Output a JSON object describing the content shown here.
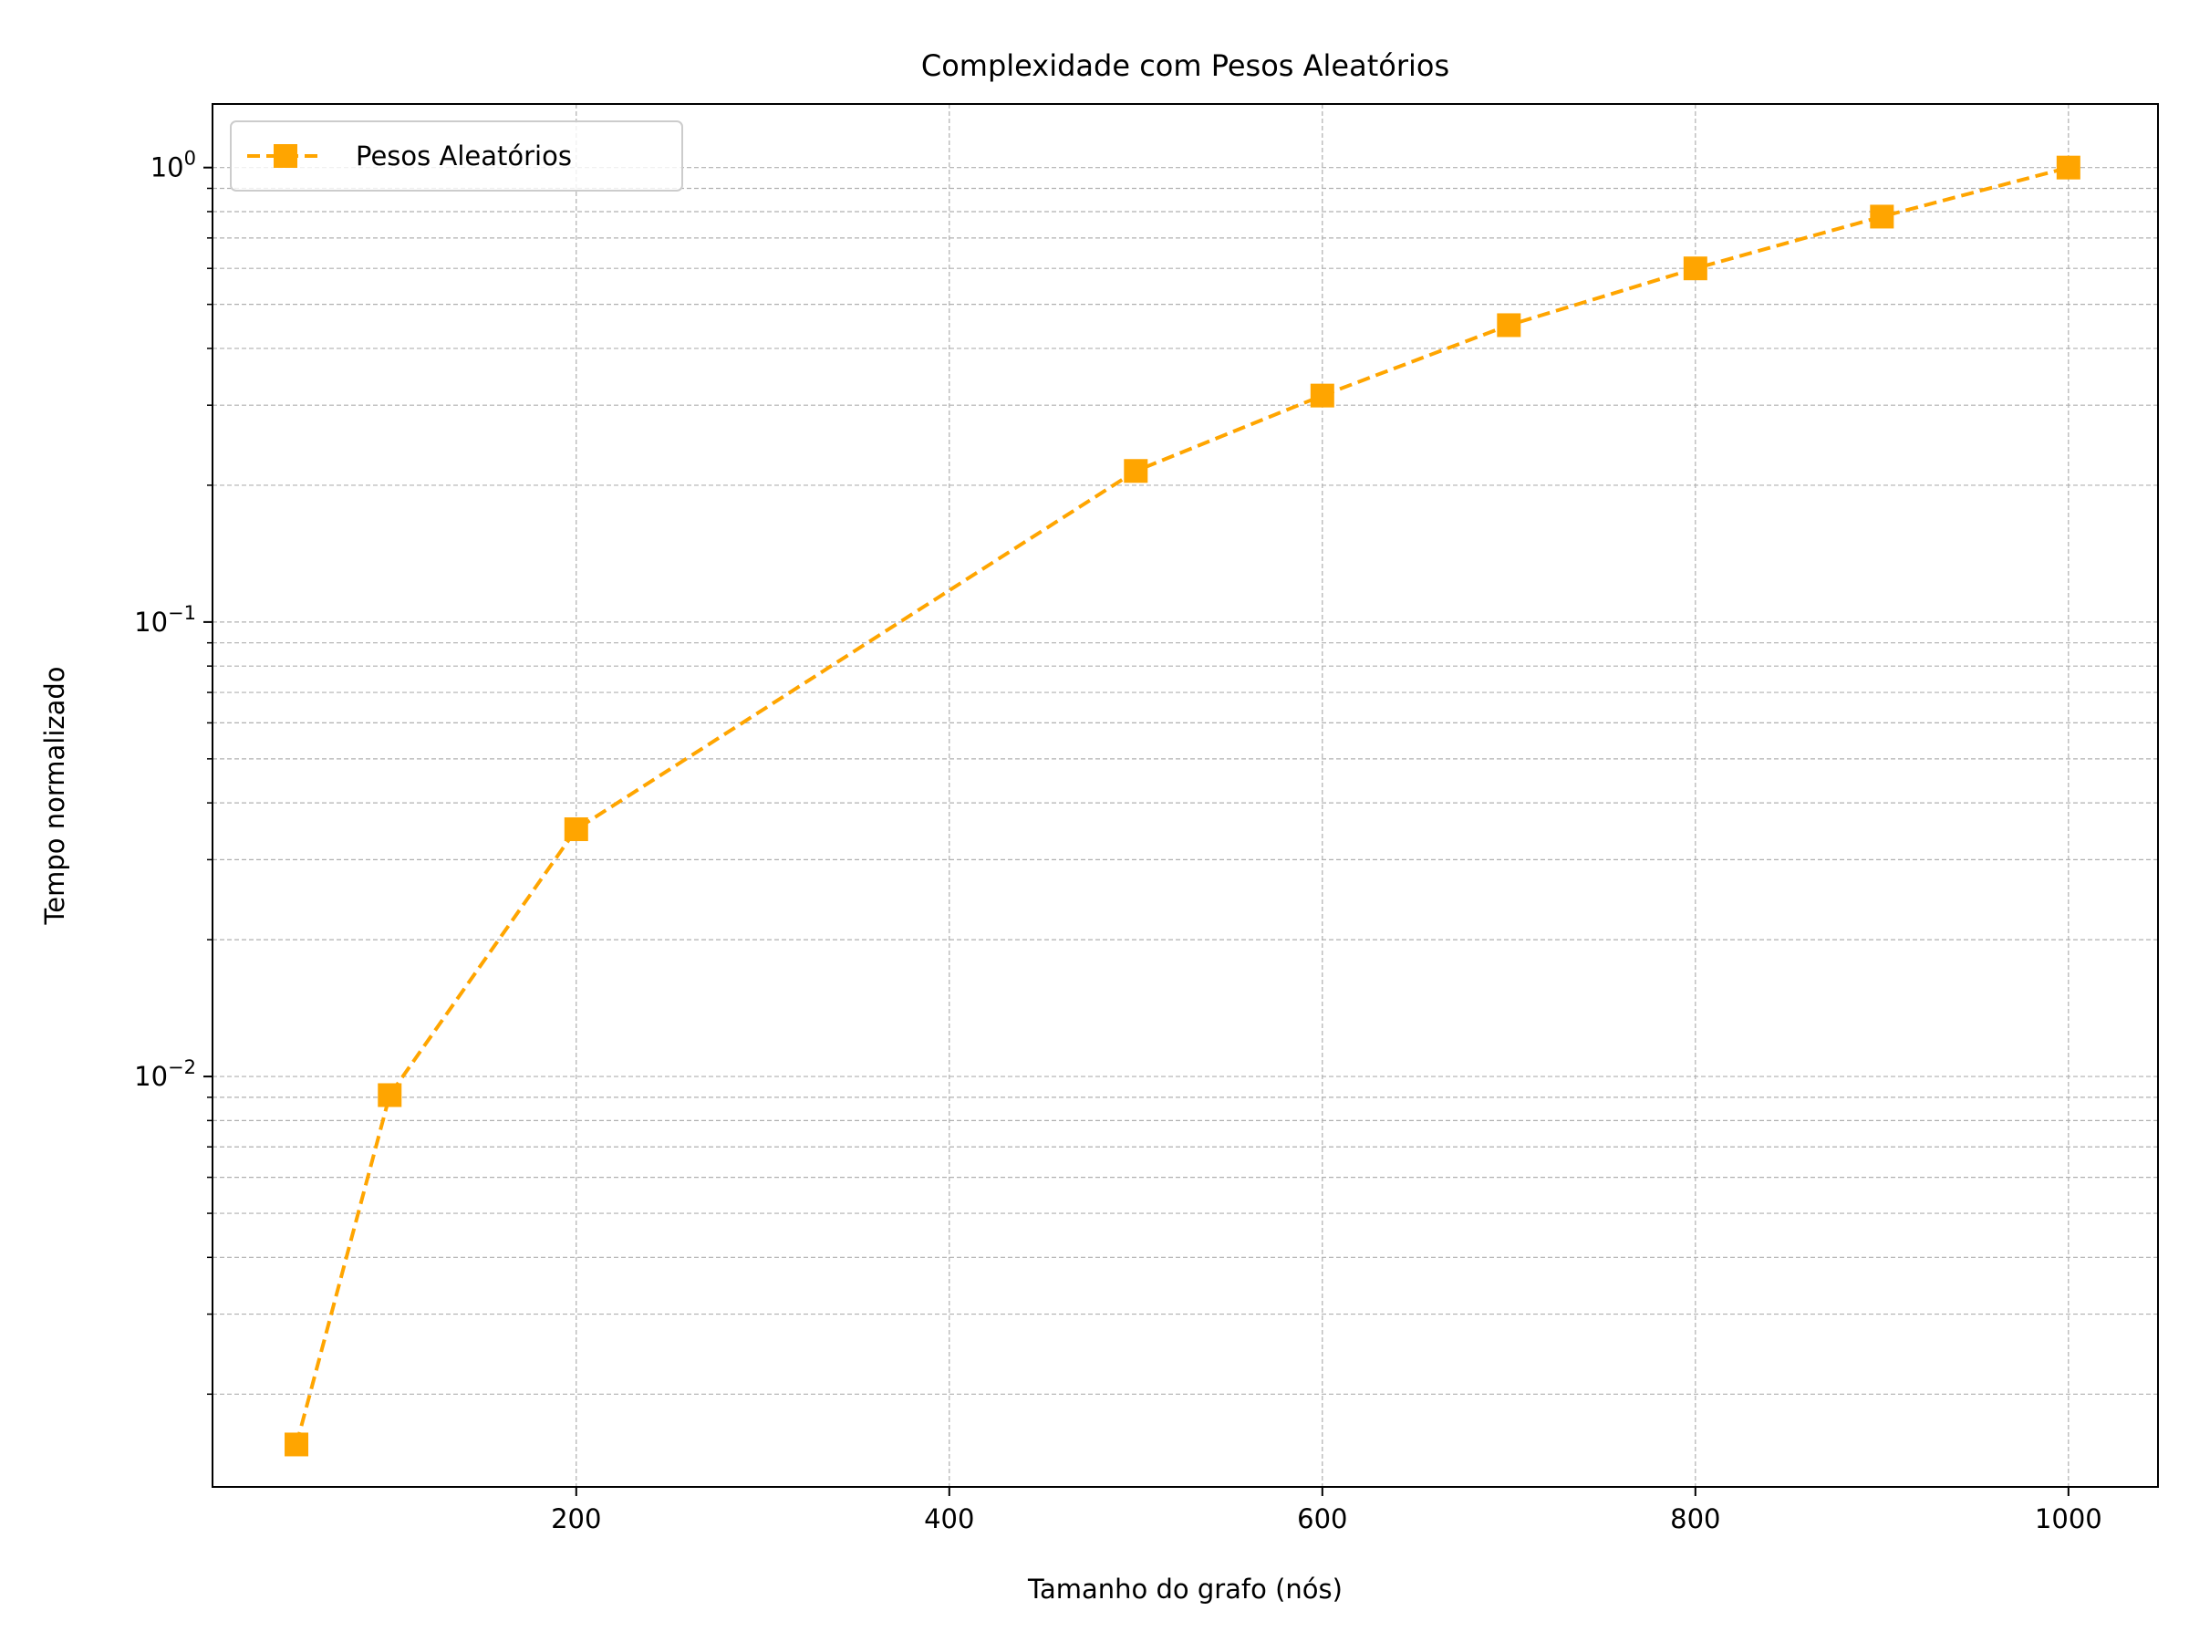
{
  "chart_data": {
    "type": "line",
    "title": "Complexidade com Pesos Aleatórios",
    "xlabel": "Tamanho do grafo (nós)",
    "ylabel": "Tempo normalizado",
    "yscale": "log",
    "grid": "both",
    "legend_position": "top-left",
    "xlim": [
      5,
      1048
    ],
    "ylim": [
      0.00125,
      1.38
    ],
    "x_ticks": [
      200,
      400,
      600,
      800,
      1000
    ],
    "y_ticks": [
      {
        "value": 0.01,
        "base": "10",
        "exp": "−2"
      },
      {
        "value": 0.1,
        "base": "10",
        "exp": "−1"
      },
      {
        "value": 1,
        "base": "10",
        "exp": "0"
      }
    ],
    "series": [
      {
        "name": "Pesos Aleatórios",
        "color": "#FFA500",
        "line_style": "dashed",
        "marker": "square",
        "x": [
          50,
          100,
          200,
          500,
          600,
          700,
          800,
          900,
          1000
        ],
        "y": [
          0.00155,
          0.0091,
          0.035,
          0.215,
          0.315,
          0.45,
          0.6,
          0.78,
          1.0
        ]
      }
    ]
  }
}
